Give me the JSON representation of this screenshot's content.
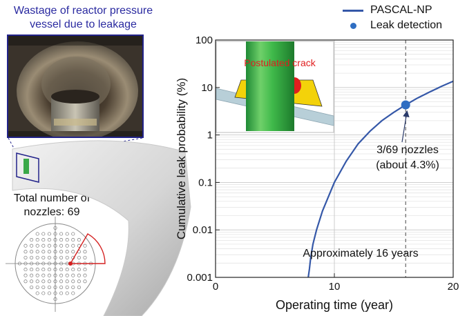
{
  "chart_data": {
    "type": "line",
    "title": "",
    "xlabel": "Operating time (year)",
    "ylabel": "Cumulative leak probability (%)",
    "xlim": [
      0,
      20
    ],
    "ylim": [
      0.001,
      100
    ],
    "yscale": "log",
    "grid": true,
    "legend_placement": "top-right",
    "x_ticks": [
      0,
      10,
      20
    ],
    "x_tick_labels": [
      "0",
      "10",
      "20"
    ],
    "y_ticks": [
      0.001,
      0.01,
      0.1,
      1,
      10,
      100
    ],
    "y_tick_labels": [
      "0.001",
      "0.01",
      "0.1",
      "1",
      "10",
      "100"
    ],
    "series": [
      {
        "name": "PASCAL-NP",
        "color": "#3558a8",
        "x": [
          7.8,
          7.9,
          8.0,
          8.2,
          8.5,
          9.0,
          9.5,
          10.0,
          11.0,
          12.0,
          13.0,
          14.0,
          15.0,
          16.0,
          17.0,
          18.0,
          19.0,
          20.0
        ],
        "y": [
          0.001,
          0.0015,
          0.0025,
          0.005,
          0.01,
          0.025,
          0.05,
          0.1,
          0.28,
          0.65,
          1.2,
          2.0,
          3.0,
          4.3,
          6.0,
          8.0,
          10.5,
          13.5
        ]
      }
    ],
    "points": [
      {
        "name": "Leak detection",
        "x": 16,
        "y": 4.3,
        "color": "#2f6ec2"
      }
    ],
    "reference_line": {
      "x": 16
    },
    "annotations": [
      {
        "text_lines": [
          "3/69 nozzles",
          "(about 4.3%)"
        ]
      },
      {
        "text": "Approximately 16 years"
      }
    ],
    "inset": {
      "label": "Postulated crack"
    }
  },
  "left_panel": {
    "title_line1": "Wastage of reactor pressure",
    "title_line2": "vessel due to leakage",
    "nozzle_line1": "Total number of",
    "nozzle_line2": "nozzles: 69"
  },
  "colors": {
    "curve": "#3558a8",
    "point": "#2f6ec2",
    "crack": "#e01e1e",
    "frame": "#22228a",
    "nozzle_green": "#3aa848"
  }
}
